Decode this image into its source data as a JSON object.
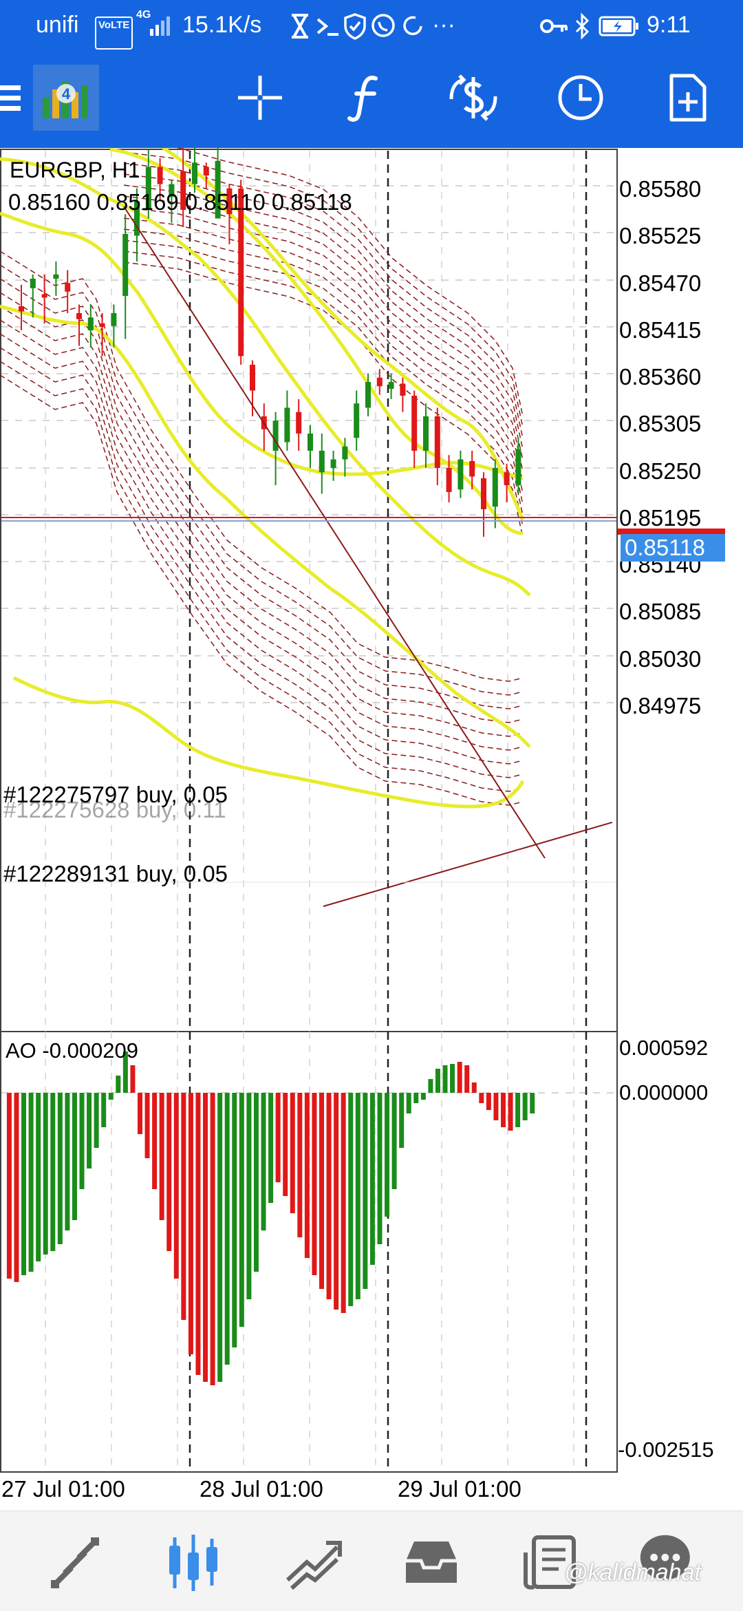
{
  "status_bar": {
    "carrier": "unifi",
    "volte": "VoLTE",
    "network": "4G",
    "speed": "15.1K/s",
    "more": "···",
    "time": "9:11"
  },
  "toolbar": {
    "menu_icon": "hamburger-icon",
    "app_logo": "metatrader-logo",
    "crosshair_icon": "crosshair-icon",
    "indicators_icon": "function-icon",
    "symbol_icon": "currency-exchange-icon",
    "timeframe_icon": "clock-icon",
    "new_order_icon": "new-document-icon"
  },
  "chart": {
    "symbol_timeframe": "EURGBP, H1",
    "ohlc": "0.85160 0.85169 0.85110 0.85118",
    "price_labels": [
      "0.85580",
      "0.85525",
      "0.85470",
      "0.85415",
      "0.85360",
      "0.85305",
      "0.85250",
      "0.85195",
      "0.85140",
      "0.85085",
      "0.85030",
      "0.84975"
    ],
    "current_price": "0.85118",
    "orders": [
      {
        "label": "#122275628 buy, 0.11"
      },
      {
        "label": "#122275797 buy, 0.05"
      },
      {
        "label": "#122289131 buy, 0.05"
      }
    ],
    "indicator_label": "AO -0.000209",
    "indicator_levels": [
      "0.000592",
      "0.000000",
      "-0.002515"
    ],
    "time_labels": [
      "27 Jul 01:00",
      "28 Jul 01:00",
      "29 Jul 01:00"
    ],
    "colors": {
      "bull": "#1a8c1a",
      "bear": "#e01818",
      "band": "#e8ec2a",
      "channel": "#8b1a1a",
      "price_tag": "#3a8ee8",
      "order_line": "#e01818"
    }
  },
  "bottom_nav": {
    "items": [
      {
        "icon": "quotes-icon"
      },
      {
        "icon": "chart-icon"
      },
      {
        "icon": "trade-icon"
      },
      {
        "icon": "history-icon"
      },
      {
        "icon": "news-icon"
      },
      {
        "icon": "messages-icon"
      }
    ],
    "watermark": "@kalidmahat"
  }
}
